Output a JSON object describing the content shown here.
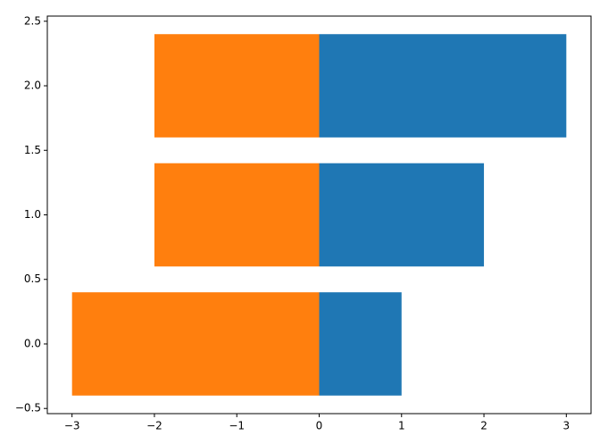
{
  "chart_data": {
    "type": "barh",
    "y": [
      0,
      1,
      2
    ],
    "series": [
      {
        "color": "#1f77b4",
        "values": [
          1,
          2,
          3
        ]
      },
      {
        "color": "#ff7f0e",
        "values": [
          -3,
          -2,
          -2
        ]
      }
    ],
    "xlim": [
      -3.3,
      3.3
    ],
    "xticks": [
      {
        "value": -3,
        "label": "−3"
      },
      {
        "value": -2,
        "label": "−2"
      },
      {
        "value": -1,
        "label": "−1"
      },
      0,
      1,
      2,
      3
    ],
    "ylim": [
      -0.54,
      2.54
    ],
    "yticks": [
      {
        "value": -0.5,
        "label": "−0.5"
      },
      {
        "value": 0,
        "label": "0.0"
      },
      {
        "value": 0.5,
        "label": "0.5"
      },
      {
        "value": 1,
        "label": "1.0"
      },
      {
        "value": 1.5,
        "label": "1.5"
      },
      {
        "value": 2,
        "label": "2.0"
      },
      {
        "value": 2.5,
        "label": "2.5"
      }
    ],
    "grid": false
  }
}
